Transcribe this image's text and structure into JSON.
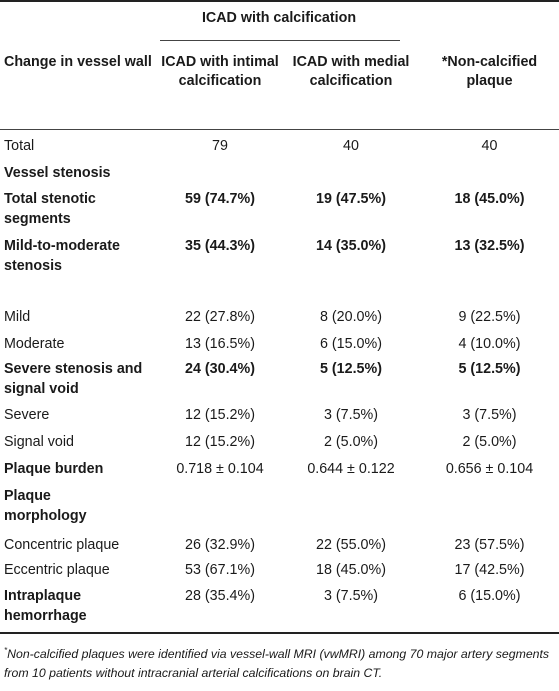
{
  "header": {
    "group_label": "ICAD with calcification",
    "first_col": "Change in vessel wall",
    "col1": "ICAD with intimal calcification",
    "col2": "ICAD with medial calcification",
    "col3": "*Non-calcified plaque"
  },
  "rows": [
    {
      "label": "Total",
      "v1": "79",
      "v2": "40",
      "v3": "40"
    },
    {
      "label": "Vessel stenosis",
      "v1": "",
      "v2": "",
      "v3": ""
    },
    {
      "label": "Total stenotic segments",
      "v1": "59 (74.7%)",
      "v2": "19 (47.5%)",
      "v3": "18 (45.0%)"
    },
    {
      "label": "Mild-to-moderate stenosis",
      "v1": "35 (44.3%)",
      "v2": "14 (35.0%)",
      "v3": "13 (32.5%)"
    },
    {
      "label": "Mild",
      "v1": "22 (27.8%)",
      "v2": "8 (20.0%)",
      "v3": "9 (22.5%)"
    },
    {
      "label": "Moderate",
      "v1": "13 (16.5%)",
      "v2": "6 (15.0%)",
      "v3": "4 (10.0%)"
    },
    {
      "label": "Severe stenosis and signal void",
      "v1": "24 (30.4%)",
      "v2": "5 (12.5%)",
      "v3": "5 (12.5%)"
    },
    {
      "label": "Severe",
      "v1": "12 (15.2%)",
      "v2": "3 (7.5%)",
      "v3": "3 (7.5%)"
    },
    {
      "label": "Signal void",
      "v1": "12 (15.2%)",
      "v2": "2 (5.0%)",
      "v3": "2 (5.0%)"
    },
    {
      "label": "Plaque burden",
      "v1": "0.718 ± 0.104",
      "v2": "0.644 ± 0.122",
      "v3": "0.656 ± 0.104"
    },
    {
      "label": "Plaque morphology",
      "v1": "",
      "v2": "",
      "v3": ""
    },
    {
      "label": "Concentric plaque",
      "v1": "26 (32.9%)",
      "v2": "22 (55.0%)",
      "v3": "23 (57.5%)"
    },
    {
      "label": "Eccentric plaque",
      "v1": "53 (67.1%)",
      "v2": "18 (45.0%)",
      "v3": "17 (42.5%)"
    },
    {
      "label": "Intraplaque hemorrhage",
      "v1": "28 (35.4%)",
      "v2": "3 (7.5%)",
      "v3": "6 (15.0%)"
    }
  ],
  "footnote": {
    "mark": "*",
    "text": "Non-calcified plaques were identified via vessel-wall MRI (vwMRI) among 70 major artery segments from 10 patients without intracranial arterial calcifications on brain CT."
  }
}
